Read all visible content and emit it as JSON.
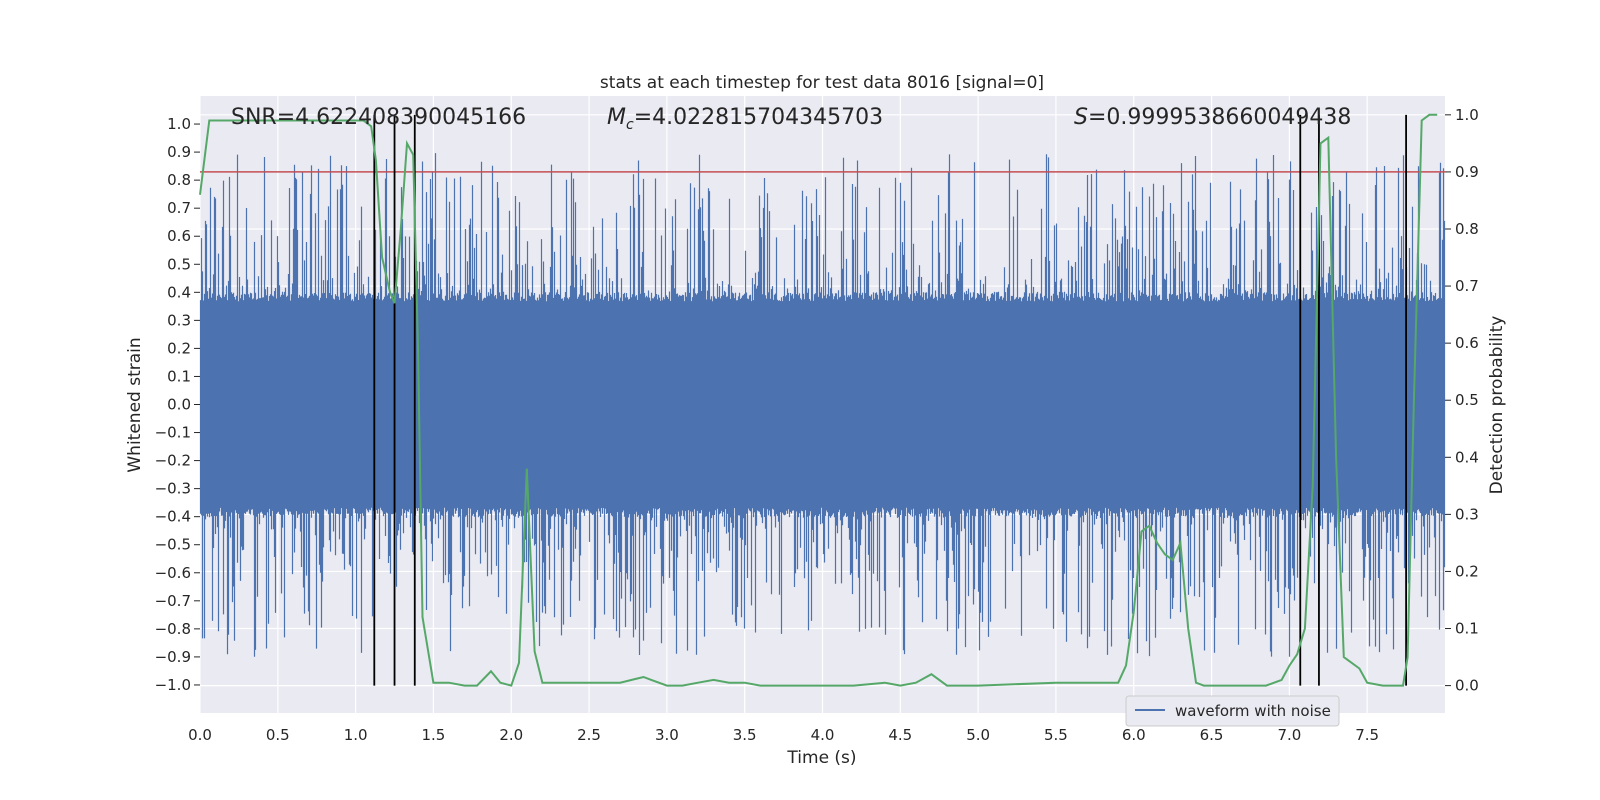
{
  "chart_data": {
    "type": "line",
    "title": "stats at each timestep for test data 8016 [signal=0]",
    "xlabel": "Time (s)",
    "ylabel": "Whitened strain",
    "y2label": "Detection probability",
    "xlim": [
      0.0,
      8.0
    ],
    "ylim": [
      -1.1,
      1.1
    ],
    "y2lim": [
      -0.048,
      1.033
    ],
    "xticks": [
      "0.0",
      "0.5",
      "1.0",
      "1.5",
      "2.0",
      "2.5",
      "3.0",
      "3.5",
      "4.0",
      "4.5",
      "5.0",
      "5.5",
      "6.0",
      "6.5",
      "7.0",
      "7.5"
    ],
    "yticks": [
      "1.0",
      "0.9",
      "0.8",
      "0.7",
      "0.6",
      "0.5",
      "0.4",
      "0.3",
      "0.2",
      "0.1",
      "0.0",
      "−0.1",
      "−0.2",
      "−0.3",
      "−0.4",
      "−0.5",
      "−0.6",
      "−0.7",
      "−0.8",
      "−0.9",
      "−1.0"
    ],
    "y2ticks": [
      "1.0",
      "0.9",
      "0.8",
      "0.7",
      "0.6",
      "0.5",
      "0.4",
      "0.3",
      "0.2",
      "0.1",
      "0.0"
    ],
    "grid": true,
    "legend": {
      "label": "waveform with noise",
      "position": "lower-right"
    },
    "annotations": {
      "snr": "SNR=4.622408390045166",
      "mc": "=4.022815704345703",
      "mc_symbol": "M",
      "mc_sub": "c",
      "s": "=0.9999538660049438",
      "s_symbol": "S"
    },
    "threshold": {
      "y2": 0.9,
      "color": "#c44e52"
    },
    "vlines": [
      1.12,
      1.25,
      1.38,
      7.07,
      7.19,
      7.75
    ],
    "waveform": {
      "name": "waveform with noise",
      "color": "#4c72b0",
      "core_amplitude": 0.4,
      "peak_amplitude": 0.9
    },
    "probability": {
      "color": "#55a868",
      "x": [
        0.0,
        0.06,
        0.15,
        0.3,
        0.5,
        0.8,
        1.0,
        1.05,
        1.1,
        1.13,
        1.17,
        1.22,
        1.25,
        1.29,
        1.33,
        1.37,
        1.4,
        1.43,
        1.5,
        1.6,
        1.7,
        1.78,
        1.87,
        1.93,
        2.0,
        2.05,
        2.1,
        2.15,
        2.2,
        2.3,
        2.5,
        2.7,
        2.85,
        2.9,
        3.0,
        3.1,
        3.2,
        3.3,
        3.4,
        3.5,
        3.6,
        4.0,
        4.2,
        4.4,
        4.5,
        4.6,
        4.7,
        4.8,
        5.0,
        5.5,
        5.7,
        5.8,
        5.9,
        5.95,
        6.0,
        6.05,
        6.1,
        6.15,
        6.2,
        6.25,
        6.3,
        6.35,
        6.4,
        6.45,
        6.5,
        6.7,
        6.85,
        6.95,
        7.0,
        7.05,
        7.1,
        7.15,
        7.2,
        7.25,
        7.3,
        7.35,
        7.45,
        7.5,
        7.6,
        7.68,
        7.73,
        7.76,
        7.8,
        7.85,
        7.9,
        7.95
      ],
      "y": [
        0.86,
        0.99,
        0.99,
        0.99,
        0.99,
        0.99,
        0.99,
        0.99,
        0.98,
        0.92,
        0.75,
        0.69,
        0.67,
        0.8,
        0.95,
        0.93,
        0.6,
        0.12,
        0.005,
        0.005,
        0.0,
        0.0,
        0.025,
        0.005,
        0.0,
        0.04,
        0.38,
        0.06,
        0.005,
        0.005,
        0.005,
        0.005,
        0.015,
        0.01,
        0.0,
        0.0,
        0.005,
        0.01,
        0.005,
        0.005,
        0.0,
        0.0,
        0.0,
        0.005,
        0.0,
        0.005,
        0.02,
        0.0,
        0.0,
        0.005,
        0.005,
        0.005,
        0.005,
        0.035,
        0.13,
        0.27,
        0.28,
        0.25,
        0.23,
        0.22,
        0.25,
        0.1,
        0.005,
        0.0,
        0.0,
        0.0,
        0.0,
        0.01,
        0.035,
        0.055,
        0.1,
        0.35,
        0.95,
        0.96,
        0.4,
        0.05,
        0.03,
        0.005,
        0.0,
        0.0,
        0.0,
        0.05,
        0.5,
        0.99,
        1.0,
        1.0
      ]
    },
    "colors": {
      "plot_bg": "#eaeaf2",
      "grid": "#ffffff",
      "vline": "#000000"
    }
  }
}
